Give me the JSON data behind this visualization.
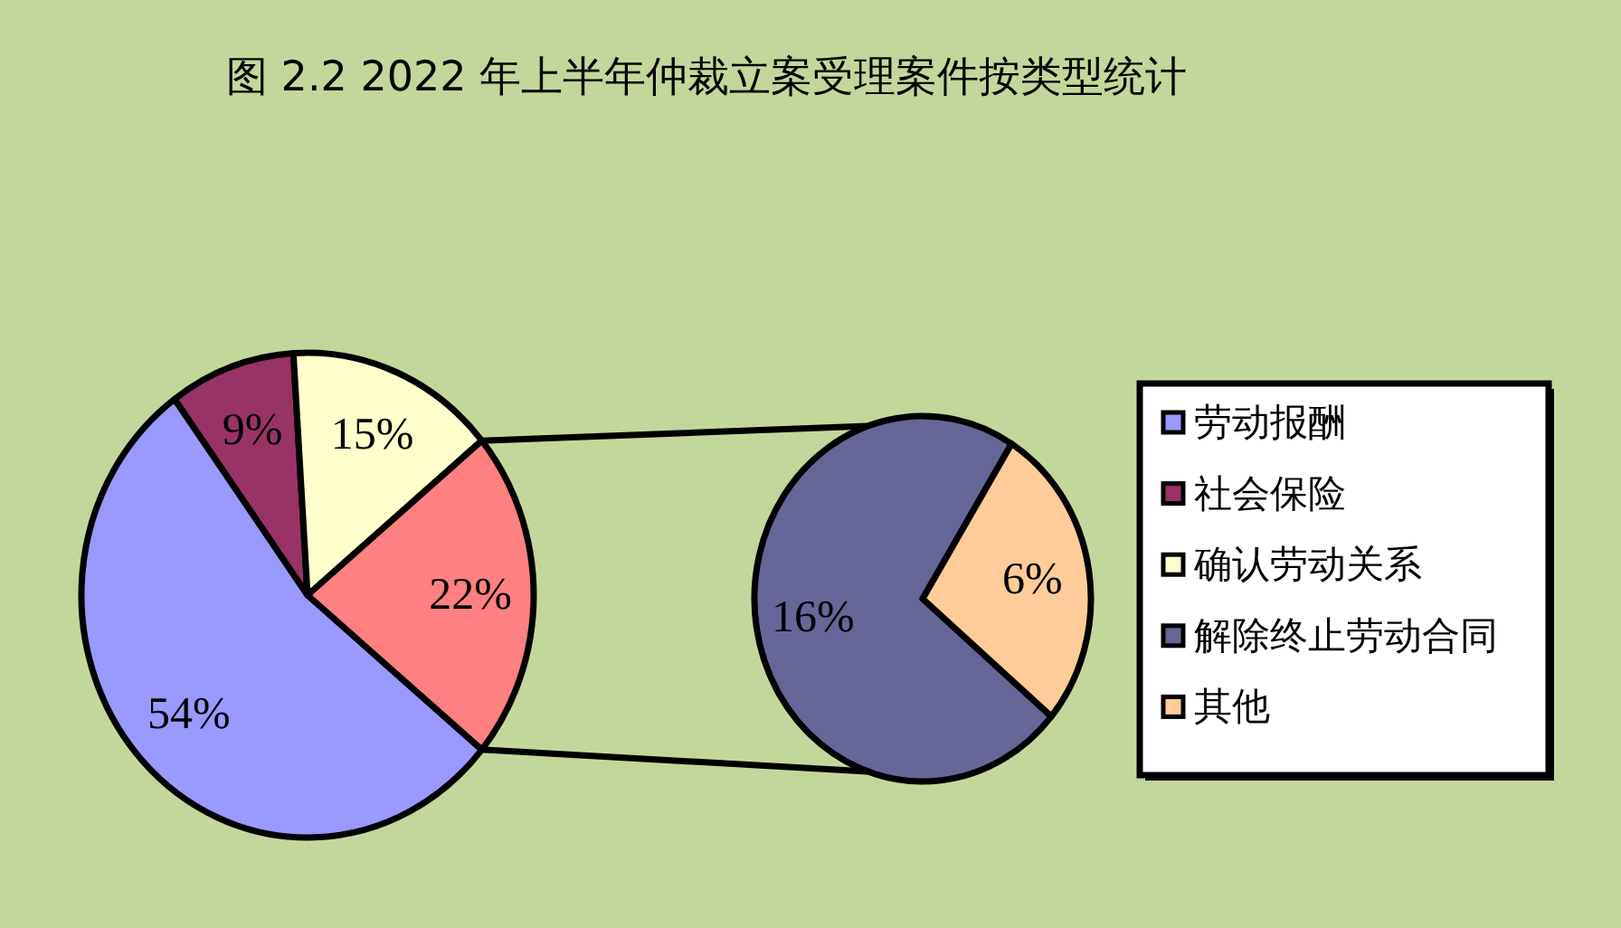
{
  "chart_data": [
    {
      "type": "pie",
      "title": "图 2.2 2022 年上半年仲裁立案受理案件按类型统计",
      "categories": [
        "劳动报酬",
        "社会保险",
        "确认劳动关系",
        null
      ],
      "values": [
        54,
        9,
        15,
        22
      ],
      "colors": [
        "#9999ff",
        "#993366",
        "#ffffcc",
        "#ff8080"
      ],
      "value_labels": [
        "54%",
        "9%",
        "15%",
        "22%"
      ],
      "legend": "right"
    },
    {
      "type": "pie",
      "categories": [
        "解除终止劳动合同",
        "其他"
      ],
      "values": [
        16,
        6
      ],
      "colors": [
        "#666699",
        "#ffcc99"
      ],
      "value_labels": [
        "16%",
        "6%"
      ],
      "legend": "right"
    }
  ]
}
